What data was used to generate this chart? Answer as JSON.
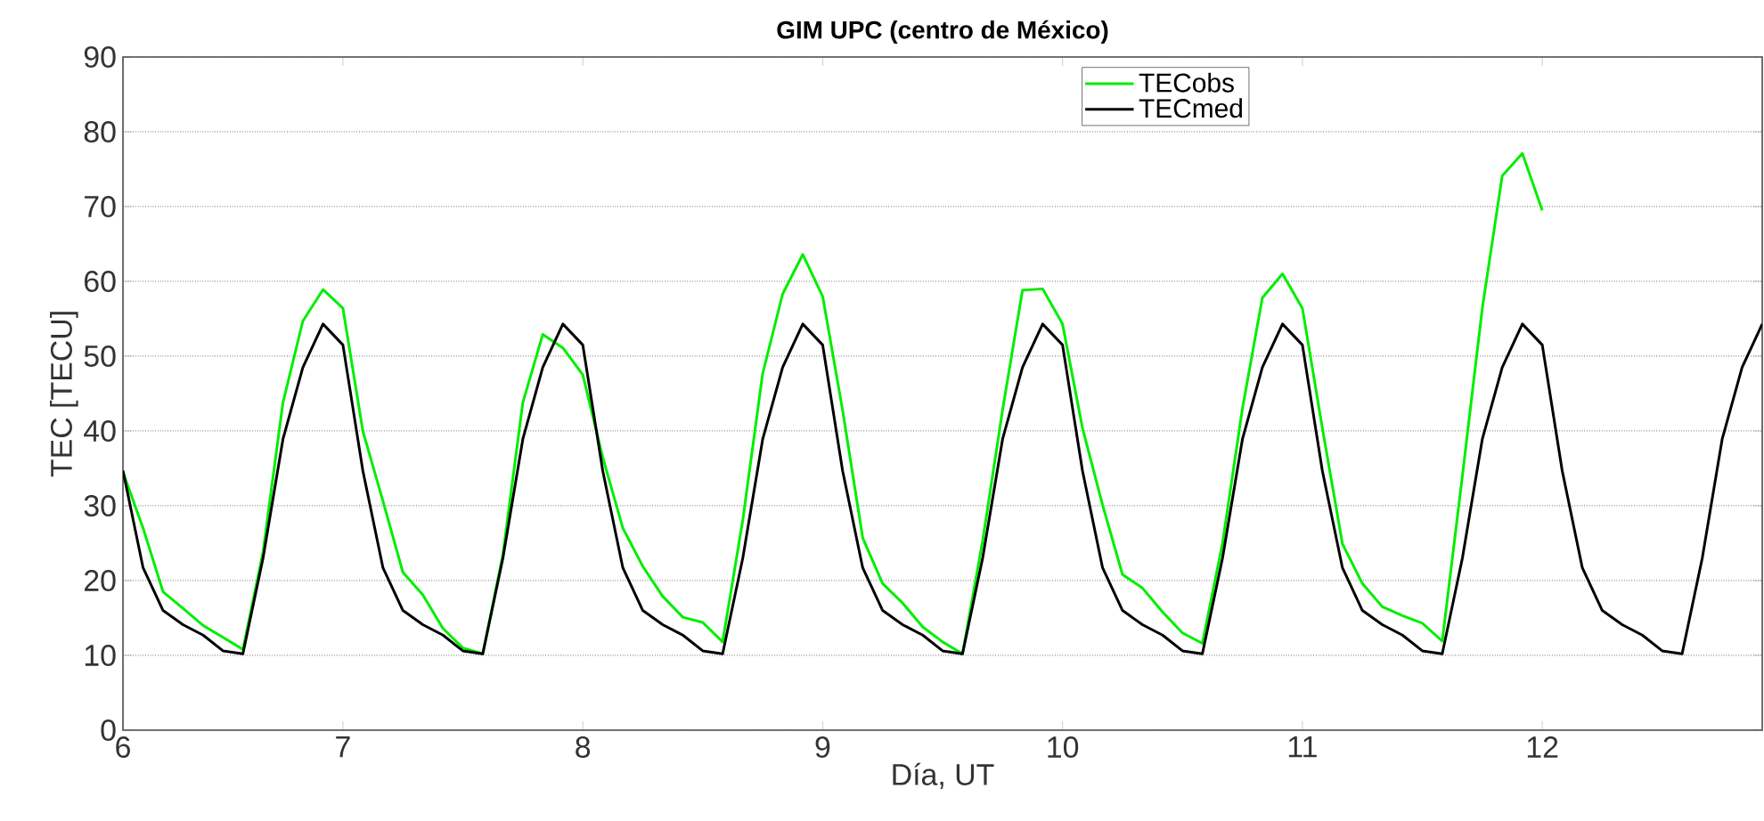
{
  "chart_data": {
    "type": "line",
    "title": "GIM UPC (centro de México)",
    "xlabel": "Día, UT",
    "ylabel": "TEC [TECU]",
    "x": [
      6.083,
      6.167,
      6.25,
      6.333,
      6.417,
      6.5,
      6.583,
      6.667,
      6.75,
      6.833,
      6.917,
      7.0,
      7.083,
      7.167,
      7.25,
      7.333,
      7.417,
      7.5,
      7.583,
      7.667,
      7.75,
      7.833,
      7.917,
      8.0,
      8.083,
      8.167,
      8.25,
      8.333,
      8.417,
      8.5,
      8.583,
      8.667,
      8.75,
      8.833,
      8.917,
      9.0,
      9.083,
      9.167,
      9.25,
      9.333,
      9.417,
      9.5,
      9.583,
      9.667,
      9.75,
      9.833,
      9.917,
      10.0,
      10.083,
      10.167,
      10.25,
      10.333,
      10.417,
      10.5,
      10.583,
      10.667,
      10.75,
      10.833,
      10.917,
      11.0,
      11.083,
      11.167,
      11.25,
      11.333,
      11.417,
      11.5,
      11.583,
      11.667,
      11.75,
      11.833,
      11.917,
      12.0,
      12.083,
      12.167,
      12.25,
      12.333,
      12.417,
      12.5,
      12.583,
      12.667,
      12.75,
      12.833,
      12.917
    ],
    "series": [
      {
        "name": "TECobs",
        "color": "#00ee00",
        "values": [
          34.5,
          27,
          18.5,
          16.3,
          14,
          12.4,
          10.8,
          23.8,
          43.8,
          54.7,
          58.9,
          56.4,
          40,
          30.6,
          21.1,
          18.1,
          13.6,
          11,
          10.2,
          23.5,
          43.8,
          52.9,
          51.1,
          47.5,
          36.5,
          27,
          21.9,
          17.9,
          15.1,
          14.4,
          11.8,
          28.1,
          47.7,
          58.3,
          63.6,
          58,
          42.8,
          25.7,
          19.6,
          17,
          13.8,
          11.8,
          10.2,
          25.3,
          42.8,
          58.8,
          59,
          54.3,
          40.4,
          30.1,
          20.8,
          19,
          15.8,
          13,
          11.6,
          25,
          43,
          57.8,
          61,
          56.4,
          40.4,
          24.9,
          19.6,
          16.5,
          15.3,
          14.3,
          11.9,
          34,
          56.4,
          74.1,
          77.1,
          69.5,
          null,
          null,
          null,
          null,
          null,
          null,
          null,
          null,
          null,
          null,
          null
        ]
      },
      {
        "name": "TECmed",
        "color": "#000000",
        "values": [
          34.7,
          21.7,
          16,
          14.1,
          12.7,
          10.6,
          10.2,
          23,
          38.9,
          48.5,
          54.3,
          51.5,
          34.7,
          21.7,
          16,
          14.1,
          12.7,
          10.6,
          10.2,
          23,
          38.9,
          48.5,
          54.3,
          51.5,
          34.7,
          21.7,
          16,
          14.1,
          12.7,
          10.6,
          10.2,
          23,
          38.9,
          48.5,
          54.3,
          51.5,
          34.7,
          21.7,
          16,
          14.1,
          12.7,
          10.6,
          10.2,
          23,
          38.9,
          48.5,
          54.3,
          51.5,
          34.7,
          21.7,
          16,
          14.1,
          12.7,
          10.6,
          10.2,
          23,
          38.9,
          48.5,
          54.3,
          51.5,
          34.7,
          21.7,
          16,
          14.1,
          12.7,
          10.6,
          10.2,
          23,
          38.9,
          48.5,
          54.3,
          51.5,
          34.7,
          21.7,
          16,
          14.1,
          12.7,
          10.6,
          10.2,
          23,
          38.9,
          48.5,
          54.3
        ]
      }
    ],
    "xlim": [
      6.083,
      12.917
    ],
    "ylim": [
      0,
      90
    ],
    "xticks": [
      {
        "value": 6.083,
        "label": "6"
      },
      7,
      8,
      9,
      10,
      11,
      12
    ],
    "yticks": [
      0,
      10,
      20,
      30,
      40,
      50,
      60,
      70,
      80,
      90
    ],
    "grid": "y",
    "legend": "top",
    "line_style": "solid",
    "marker": "none"
  }
}
